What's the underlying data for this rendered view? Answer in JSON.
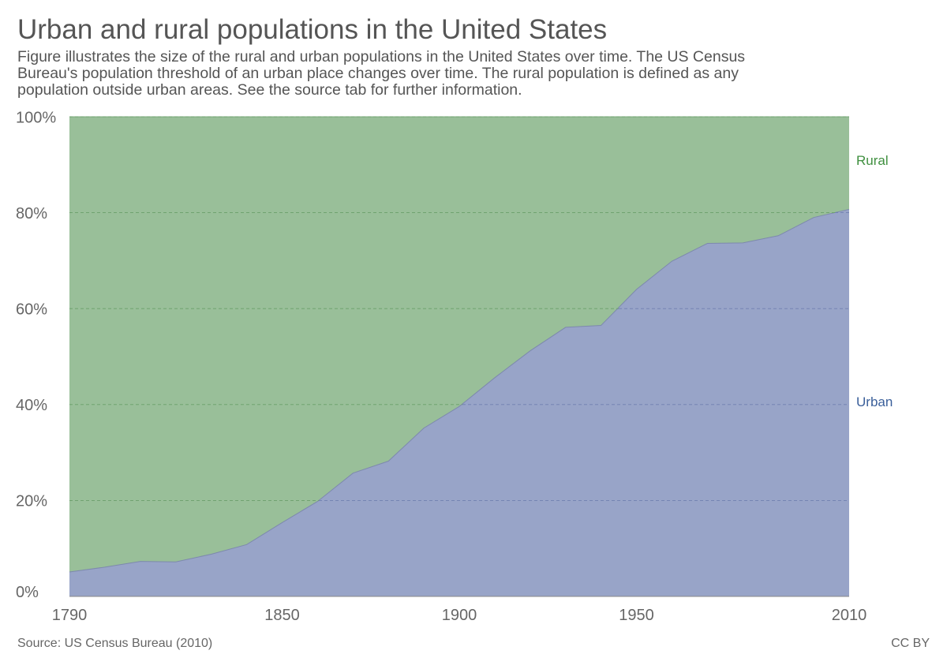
{
  "colors": {
    "title": "#555555",
    "subtitle": "#555555",
    "axis_text": "#666666",
    "footer_text": "#666666",
    "rural_fill": "#99bf99",
    "rural_line": "#7aa87a",
    "rural_label": "#3f8f3f",
    "urban_fill": "#98a4c8",
    "urban_line": "#7d89ad",
    "urban_label": "#3a5f9a",
    "grid_on_rural": "#6a9f6a",
    "grid_on_urban": "#6f7fb0",
    "axis_line": "#888888"
  },
  "footer": {
    "source": "Source: US Census Bureau (2010)",
    "license": "CC BY"
  },
  "chart_data": {
    "type": "area",
    "stacked": true,
    "normalized": true,
    "title": "Urban and rural populations in the United States",
    "subtitle": "Figure illustrates the size of the rural and urban populations in the United States over time. The US Census Bureau's population threshold of an urban place changes over time. The rural population is defined as any population outside urban areas. See the source tab for further information.",
    "xlabel": "",
    "ylabel": "",
    "xlim": [
      1790,
      2010
    ],
    "ylim": [
      0,
      100
    ],
    "x_ticks": [
      1790,
      1850,
      1900,
      1950,
      2010
    ],
    "y_ticks": [
      0,
      20,
      40,
      60,
      80,
      100
    ],
    "y_tick_labels": [
      "0%",
      "20%",
      "40%",
      "60%",
      "80%",
      "100%"
    ],
    "grid": "horizontal dashed",
    "legend": "inline labels at right",
    "x": [
      1790,
      1800,
      1810,
      1820,
      1830,
      1840,
      1850,
      1860,
      1870,
      1880,
      1890,
      1900,
      1910,
      1920,
      1930,
      1940,
      1950,
      1960,
      1970,
      1980,
      1990,
      2000,
      2010
    ],
    "series": [
      {
        "name": "Urban",
        "values": [
          5.1,
          6.1,
          7.3,
          7.2,
          8.8,
          10.8,
          15.4,
          19.8,
          25.7,
          28.2,
          35.1,
          39.6,
          45.6,
          51.2,
          56.1,
          56.5,
          64.0,
          69.9,
          73.6,
          73.7,
          75.2,
          79.0,
          80.7
        ]
      },
      {
        "name": "Rural",
        "values": [
          94.9,
          93.9,
          92.7,
          92.8,
          91.2,
          89.2,
          84.6,
          80.2,
          74.3,
          71.8,
          64.9,
          60.4,
          54.4,
          48.8,
          43.9,
          43.5,
          36.0,
          30.1,
          26.4,
          26.3,
          24.8,
          21.0,
          19.3
        ]
      }
    ]
  }
}
